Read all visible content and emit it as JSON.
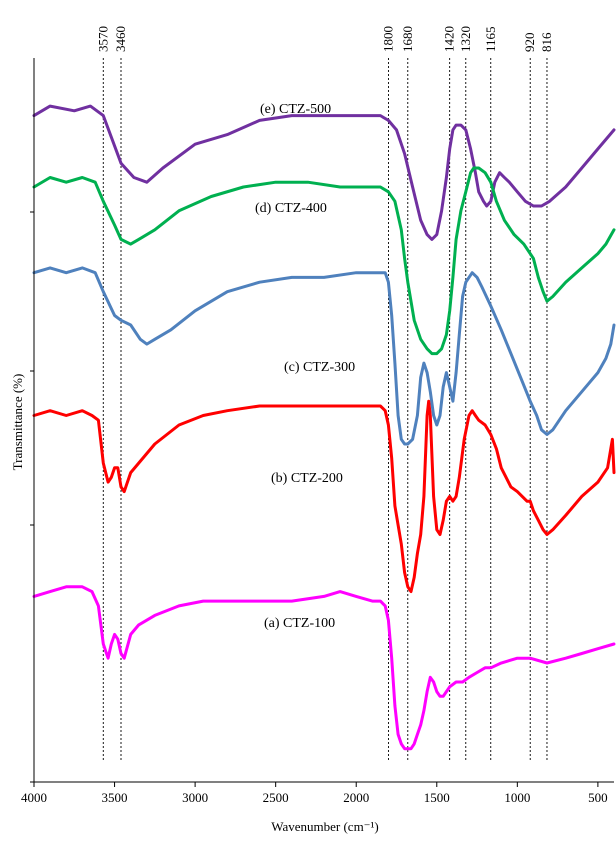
{
  "chart_data": {
    "type": "line",
    "xlabel": "Wavenumber (cm⁻¹)",
    "ylabel": "Transmittance (%)",
    "xlim": [
      4000,
      400
    ],
    "x_reversed": true,
    "xticks": [
      4000,
      3500,
      3000,
      2500,
      2000,
      1500,
      1000,
      500
    ],
    "y_ticks_labeled": false,
    "reference_lines": [
      {
        "value": 3570,
        "label": "3570"
      },
      {
        "value": 3460,
        "label": "3460"
      },
      {
        "value": 1800,
        "label": "1800"
      },
      {
        "value": 1680,
        "label": "1680"
      },
      {
        "value": 1420,
        "label": "1420"
      },
      {
        "value": 1320,
        "label": "1320"
      },
      {
        "value": 1165,
        "label": "1165"
      },
      {
        "value": 920,
        "label": "920"
      },
      {
        "value": 816,
        "label": "816"
      }
    ],
    "series": [
      {
        "name": "(e) CTZ-500",
        "color": "#7030a0",
        "points": [
          [
            4000,
            90
          ],
          [
            3900,
            92
          ],
          [
            3750,
            91
          ],
          [
            3650,
            92
          ],
          [
            3570,
            90
          ],
          [
            3460,
            80
          ],
          [
            3380,
            77
          ],
          [
            3300,
            76
          ],
          [
            3200,
            79
          ],
          [
            3000,
            84
          ],
          [
            2800,
            86
          ],
          [
            2600,
            89
          ],
          [
            2400,
            90
          ],
          [
            2200,
            90
          ],
          [
            2000,
            90
          ],
          [
            1850,
            90
          ],
          [
            1800,
            89
          ],
          [
            1750,
            87
          ],
          [
            1700,
            82
          ],
          [
            1650,
            75
          ],
          [
            1600,
            68
          ],
          [
            1560,
            65
          ],
          [
            1530,
            64
          ],
          [
            1500,
            65
          ],
          [
            1470,
            70
          ],
          [
            1440,
            77
          ],
          [
            1420,
            83
          ],
          [
            1400,
            87
          ],
          [
            1380,
            88
          ],
          [
            1350,
            88
          ],
          [
            1320,
            87
          ],
          [
            1290,
            83
          ],
          [
            1260,
            78
          ],
          [
            1240,
            74
          ],
          [
            1210,
            72
          ],
          [
            1190,
            71
          ],
          [
            1165,
            72
          ],
          [
            1140,
            76
          ],
          [
            1110,
            78
          ],
          [
            1080,
            77
          ],
          [
            1050,
            76
          ],
          [
            1000,
            74
          ],
          [
            950,
            72
          ],
          [
            900,
            71
          ],
          [
            850,
            71
          ],
          [
            800,
            72
          ],
          [
            700,
            75
          ],
          [
            600,
            79
          ],
          [
            500,
            83
          ],
          [
            400,
            87
          ]
        ]
      },
      {
        "name": "(d) CTZ-400",
        "color": "#00b050",
        "points": [
          [
            4000,
            75
          ],
          [
            3900,
            77
          ],
          [
            3800,
            76
          ],
          [
            3700,
            77
          ],
          [
            3620,
            76
          ],
          [
            3570,
            72
          ],
          [
            3500,
            67
          ],
          [
            3460,
            64
          ],
          [
            3400,
            63
          ],
          [
            3350,
            64
          ],
          [
            3250,
            66
          ],
          [
            3100,
            70
          ],
          [
            2900,
            73
          ],
          [
            2700,
            75
          ],
          [
            2500,
            76
          ],
          [
            2300,
            76
          ],
          [
            2100,
            75
          ],
          [
            1950,
            75
          ],
          [
            1850,
            75
          ],
          [
            1800,
            74
          ],
          [
            1760,
            72
          ],
          [
            1720,
            66
          ],
          [
            1700,
            60
          ],
          [
            1680,
            55
          ],
          [
            1640,
            47
          ],
          [
            1600,
            43
          ],
          [
            1560,
            41
          ],
          [
            1530,
            40
          ],
          [
            1500,
            40
          ],
          [
            1470,
            41
          ],
          [
            1440,
            44
          ],
          [
            1420,
            49
          ],
          [
            1400,
            56
          ],
          [
            1380,
            64
          ],
          [
            1350,
            70
          ],
          [
            1320,
            74
          ],
          [
            1290,
            78
          ],
          [
            1270,
            79
          ],
          [
            1240,
            79
          ],
          [
            1200,
            78
          ],
          [
            1165,
            76
          ],
          [
            1130,
            72
          ],
          [
            1080,
            68
          ],
          [
            1020,
            65
          ],
          [
            960,
            63
          ],
          [
            900,
            60
          ],
          [
            870,
            56
          ],
          [
            840,
            53
          ],
          [
            816,
            51
          ],
          [
            780,
            52
          ],
          [
            700,
            55
          ],
          [
            600,
            58
          ],
          [
            500,
            61
          ],
          [
            450,
            63
          ],
          [
            400,
            66
          ]
        ]
      },
      {
        "name": "(c) CTZ-300",
        "color": "#4f81bd",
        "points": [
          [
            4000,
            57
          ],
          [
            3900,
            58
          ],
          [
            3800,
            57
          ],
          [
            3700,
            58
          ],
          [
            3620,
            57
          ],
          [
            3570,
            53
          ],
          [
            3500,
            48
          ],
          [
            3460,
            47
          ],
          [
            3400,
            46
          ],
          [
            3340,
            43
          ],
          [
            3300,
            42
          ],
          [
            3250,
            43
          ],
          [
            3150,
            45
          ],
          [
            3000,
            49
          ],
          [
            2800,
            53
          ],
          [
            2600,
            55
          ],
          [
            2400,
            56
          ],
          [
            2200,
            56
          ],
          [
            2000,
            57
          ],
          [
            1900,
            57
          ],
          [
            1850,
            57
          ],
          [
            1820,
            57
          ],
          [
            1800,
            55
          ],
          [
            1780,
            48
          ],
          [
            1760,
            38
          ],
          [
            1740,
            27
          ],
          [
            1720,
            22
          ],
          [
            1700,
            21
          ],
          [
            1680,
            21
          ],
          [
            1650,
            22
          ],
          [
            1620,
            27
          ],
          [
            1600,
            35
          ],
          [
            1580,
            38
          ],
          [
            1560,
            36
          ],
          [
            1540,
            32
          ],
          [
            1520,
            27
          ],
          [
            1500,
            25
          ],
          [
            1480,
            27
          ],
          [
            1460,
            33
          ],
          [
            1440,
            36
          ],
          [
            1420,
            33
          ],
          [
            1400,
            30
          ],
          [
            1380,
            36
          ],
          [
            1360,
            44
          ],
          [
            1340,
            52
          ],
          [
            1320,
            55
          ],
          [
            1300,
            56
          ],
          [
            1280,
            57
          ],
          [
            1250,
            56
          ],
          [
            1220,
            54
          ],
          [
            1165,
            50
          ],
          [
            1100,
            45
          ],
          [
            1040,
            40
          ],
          [
            980,
            35
          ],
          [
            920,
            30
          ],
          [
            880,
            27
          ],
          [
            850,
            24
          ],
          [
            816,
            23
          ],
          [
            780,
            24
          ],
          [
            700,
            28
          ],
          [
            600,
            32
          ],
          [
            500,
            36
          ],
          [
            450,
            39
          ],
          [
            420,
            42
          ],
          [
            400,
            46
          ]
        ]
      },
      {
        "name": "(b) CTZ-200",
        "color": "#ff0000",
        "points": [
          [
            4000,
            27
          ],
          [
            3900,
            28
          ],
          [
            3800,
            27
          ],
          [
            3700,
            28
          ],
          [
            3640,
            27
          ],
          [
            3600,
            26
          ],
          [
            3570,
            17
          ],
          [
            3540,
            13
          ],
          [
            3520,
            14
          ],
          [
            3500,
            16
          ],
          [
            3480,
            16
          ],
          [
            3460,
            12
          ],
          [
            3440,
            11
          ],
          [
            3400,
            15
          ],
          [
            3350,
            17
          ],
          [
            3250,
            21
          ],
          [
            3100,
            25
          ],
          [
            2950,
            27
          ],
          [
            2800,
            28
          ],
          [
            2600,
            29
          ],
          [
            2400,
            29
          ],
          [
            2200,
            29
          ],
          [
            2000,
            29
          ],
          [
            1900,
            29
          ],
          [
            1850,
            29
          ],
          [
            1820,
            28
          ],
          [
            1800,
            25
          ],
          [
            1780,
            18
          ],
          [
            1760,
            8
          ],
          [
            1740,
            4
          ],
          [
            1720,
            0
          ],
          [
            1700,
            -6
          ],
          [
            1680,
            -9
          ],
          [
            1660,
            -10
          ],
          [
            1640,
            -7
          ],
          [
            1620,
            -2
          ],
          [
            1600,
            2
          ],
          [
            1580,
            10
          ],
          [
            1560,
            27
          ],
          [
            1550,
            30
          ],
          [
            1540,
            27
          ],
          [
            1520,
            10
          ],
          [
            1500,
            3
          ],
          [
            1480,
            2
          ],
          [
            1460,
            5
          ],
          [
            1440,
            9
          ],
          [
            1420,
            10
          ],
          [
            1400,
            9
          ],
          [
            1380,
            10
          ],
          [
            1360,
            14
          ],
          [
            1330,
            22
          ],
          [
            1300,
            27
          ],
          [
            1280,
            28
          ],
          [
            1260,
            27
          ],
          [
            1240,
            26
          ],
          [
            1200,
            25
          ],
          [
            1165,
            23
          ],
          [
            1130,
            20
          ],
          [
            1100,
            16
          ],
          [
            1070,
            14
          ],
          [
            1040,
            12
          ],
          [
            1000,
            11
          ],
          [
            970,
            10
          ],
          [
            940,
            9
          ],
          [
            920,
            9
          ],
          [
            900,
            7
          ],
          [
            870,
            5
          ],
          [
            840,
            3
          ],
          [
            816,
            2
          ],
          [
            780,
            3
          ],
          [
            700,
            6
          ],
          [
            600,
            10
          ],
          [
            500,
            13
          ],
          [
            440,
            16
          ],
          [
            420,
            20
          ],
          [
            410,
            22
          ],
          [
            400,
            15
          ]
        ]
      },
      {
        "name": "(a) CTZ-100",
        "color": "#ff00ff",
        "points": [
          [
            4000,
            -11
          ],
          [
            3900,
            -10
          ],
          [
            3800,
            -9
          ],
          [
            3700,
            -9
          ],
          [
            3640,
            -10
          ],
          [
            3600,
            -13
          ],
          [
            3570,
            -21
          ],
          [
            3540,
            -24
          ],
          [
            3520,
            -21
          ],
          [
            3500,
            -19
          ],
          [
            3480,
            -20
          ],
          [
            3460,
            -23
          ],
          [
            3440,
            -24
          ],
          [
            3400,
            -19
          ],
          [
            3350,
            -17
          ],
          [
            3250,
            -15
          ],
          [
            3100,
            -13
          ],
          [
            2950,
            -12
          ],
          [
            2800,
            -12
          ],
          [
            2600,
            -12
          ],
          [
            2400,
            -12
          ],
          [
            2200,
            -11
          ],
          [
            2100,
            -10
          ],
          [
            2000,
            -11
          ],
          [
            1900,
            -12
          ],
          [
            1850,
            -12
          ],
          [
            1820,
            -13
          ],
          [
            1800,
            -16
          ],
          [
            1780,
            -24
          ],
          [
            1760,
            -34
          ],
          [
            1740,
            -40
          ],
          [
            1720,
            -42
          ],
          [
            1700,
            -43
          ],
          [
            1680,
            -43
          ],
          [
            1660,
            -43
          ],
          [
            1640,
            -42
          ],
          [
            1620,
            -40
          ],
          [
            1600,
            -38
          ],
          [
            1580,
            -35
          ],
          [
            1560,
            -31
          ],
          [
            1540,
            -28
          ],
          [
            1520,
            -29
          ],
          [
            1500,
            -31
          ],
          [
            1480,
            -32
          ],
          [
            1460,
            -32
          ],
          [
            1440,
            -31
          ],
          [
            1420,
            -30
          ],
          [
            1380,
            -29
          ],
          [
            1340,
            -29
          ],
          [
            1300,
            -28
          ],
          [
            1250,
            -27
          ],
          [
            1200,
            -26
          ],
          [
            1165,
            -26
          ],
          [
            1100,
            -25
          ],
          [
            1000,
            -24
          ],
          [
            920,
            -24
          ],
          [
            816,
            -25
          ],
          [
            700,
            -24
          ],
          [
            600,
            -23
          ],
          [
            500,
            -22
          ],
          [
            400,
            -21
          ]
        ]
      }
    ]
  }
}
